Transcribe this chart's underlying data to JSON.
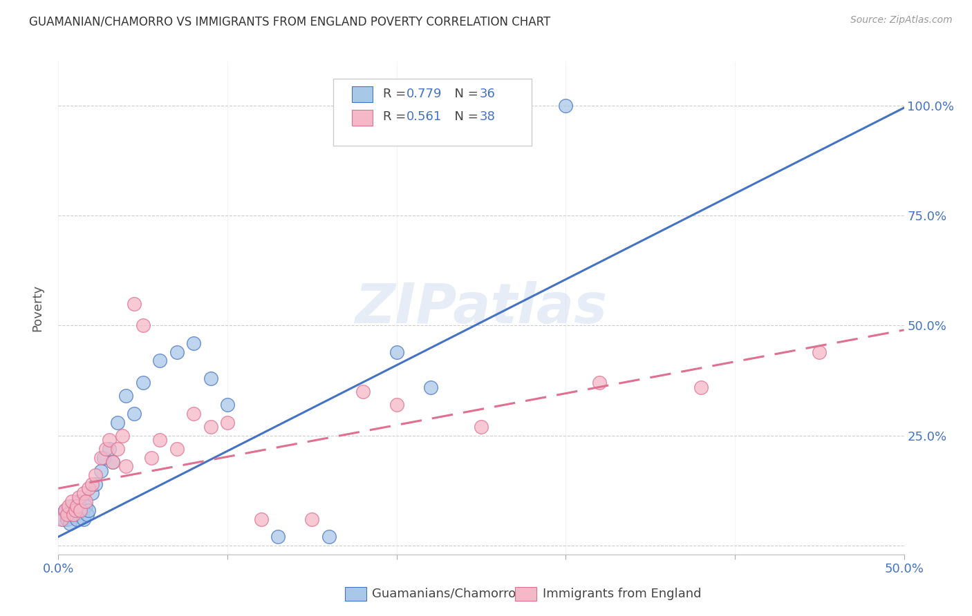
{
  "title": "GUAMANIAN/CHAMORRO VS IMMIGRANTS FROM ENGLAND POVERTY CORRELATION CHART",
  "source": "Source: ZipAtlas.com",
  "ylabel": "Poverty",
  "xlim": [
    0.0,
    0.5
  ],
  "ylim": [
    -0.02,
    1.1
  ],
  "ytick_positions": [
    0.0,
    0.25,
    0.5,
    0.75,
    1.0
  ],
  "ytick_labels": [
    "",
    "25.0%",
    "50.0%",
    "75.0%",
    "100.0%"
  ],
  "xtick_positions": [
    0.0,
    0.1,
    0.2,
    0.3,
    0.4,
    0.5
  ],
  "xtick_labels": [
    "0.0%",
    "",
    "",
    "",
    "",
    "50.0%"
  ],
  "watermark": "ZIPatlas",
  "color_blue": "#a8c8e8",
  "color_pink": "#f4b8c8",
  "line_blue": "#4472c4",
  "line_pink": "#e07090",
  "label1": "Guamanians/Chamorros",
  "label2": "Immigrants from England",
  "blue_slope": 1.95,
  "blue_intercept": 0.02,
  "pink_slope": 0.72,
  "pink_intercept": 0.13,
  "blue_x": [
    0.002,
    0.003,
    0.004,
    0.005,
    0.006,
    0.007,
    0.008,
    0.009,
    0.01,
    0.011,
    0.012,
    0.013,
    0.015,
    0.016,
    0.017,
    0.018,
    0.02,
    0.022,
    0.025,
    0.027,
    0.03,
    0.032,
    0.035,
    0.04,
    0.045,
    0.05,
    0.06,
    0.07,
    0.08,
    0.09,
    0.1,
    0.13,
    0.16,
    0.2,
    0.22,
    0.3
  ],
  "blue_y": [
    0.07,
    0.06,
    0.08,
    0.06,
    0.07,
    0.05,
    0.09,
    0.08,
    0.07,
    0.06,
    0.1,
    0.08,
    0.06,
    0.09,
    0.07,
    0.08,
    0.12,
    0.14,
    0.17,
    0.2,
    0.22,
    0.19,
    0.28,
    0.34,
    0.3,
    0.37,
    0.42,
    0.44,
    0.46,
    0.38,
    0.32,
    0.02,
    0.02,
    0.44,
    0.36,
    1.0
  ],
  "pink_x": [
    0.002,
    0.004,
    0.005,
    0.006,
    0.008,
    0.009,
    0.01,
    0.011,
    0.012,
    0.013,
    0.015,
    0.016,
    0.018,
    0.02,
    0.022,
    0.025,
    0.028,
    0.03,
    0.032,
    0.035,
    0.038,
    0.04,
    0.045,
    0.05,
    0.055,
    0.06,
    0.07,
    0.08,
    0.09,
    0.1,
    0.12,
    0.15,
    0.18,
    0.2,
    0.25,
    0.32,
    0.38,
    0.45
  ],
  "pink_y": [
    0.06,
    0.08,
    0.07,
    0.09,
    0.1,
    0.07,
    0.08,
    0.09,
    0.11,
    0.08,
    0.12,
    0.1,
    0.13,
    0.14,
    0.16,
    0.2,
    0.22,
    0.24,
    0.19,
    0.22,
    0.25,
    0.18,
    0.55,
    0.5,
    0.2,
    0.24,
    0.22,
    0.3,
    0.27,
    0.28,
    0.06,
    0.06,
    0.35,
    0.32,
    0.27,
    0.37,
    0.36,
    0.44
  ]
}
